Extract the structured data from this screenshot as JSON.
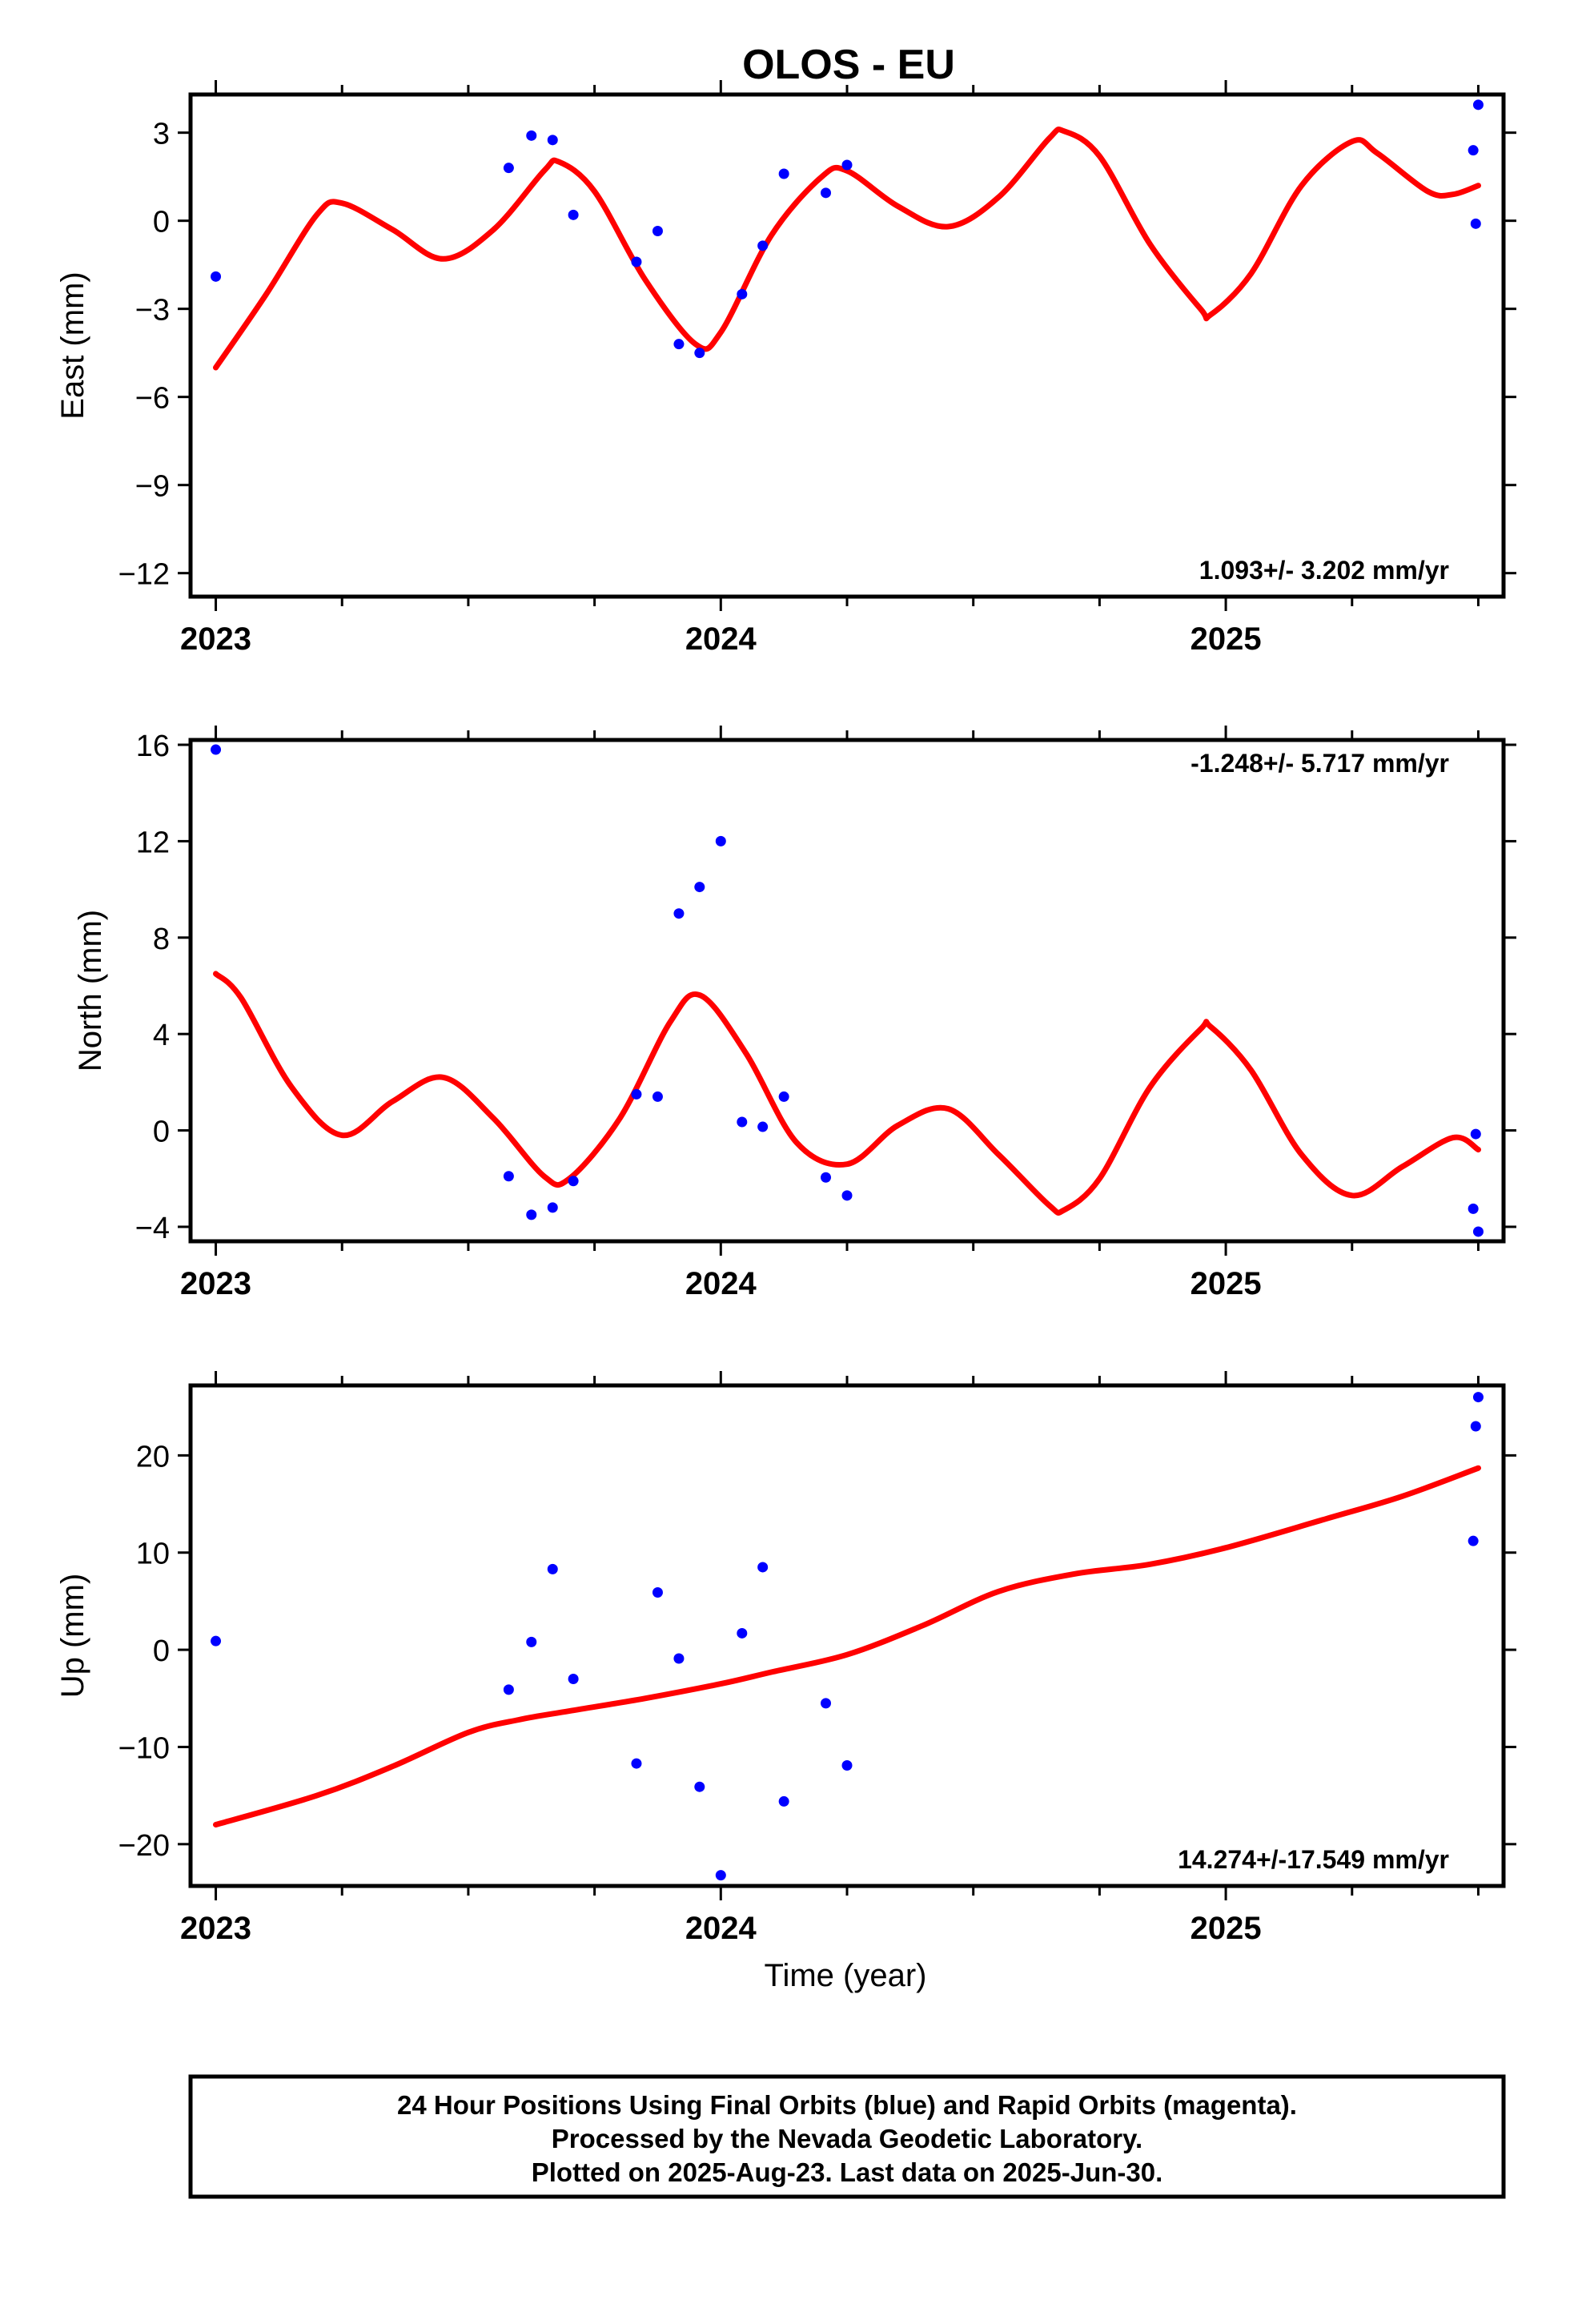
{
  "title": "OLOS - EU",
  "chart_data": [
    {
      "type": "scatter",
      "ylabel": "East (mm)",
      "xlabel": "",
      "xlim": [
        2022.95,
        2025.55
      ],
      "ylim": [
        -12.8,
        4.3
      ],
      "yticks": [
        3,
        0,
        -3,
        -6,
        -9,
        -12
      ],
      "yticklabels": [
        "3",
        "0",
        "−3",
        "−6",
        "−9",
        "−12"
      ],
      "xticks": [
        2023,
        2024,
        2025
      ],
      "xticklabels": [
        "2023",
        "2024",
        "2025"
      ],
      "rate_label": "1.093+/- 3.202 mm/yr",
      "rate_position": "bottom-right",
      "series": [
        {
          "name": "Final Orbits",
          "color": "#0000ff",
          "x": [
            2023.0,
            2023.58,
            2023.625,
            2023.667,
            2023.708,
            2023.833,
            2023.875,
            2023.917,
            2023.958,
            2024.042,
            2024.083,
            2024.125,
            2024.208,
            2024.25,
            2025.49,
            2025.495,
            2025.5
          ],
          "y": [
            -1.9,
            1.8,
            2.9,
            2.75,
            0.2,
            -1.4,
            -0.35,
            -4.2,
            -4.5,
            -2.5,
            -0.85,
            1.6,
            0.95,
            1.9,
            2.4,
            -0.1,
            3.95
          ]
        },
        {
          "name": "Model",
          "color": "#ff0000",
          "x": [
            2023.0,
            2023.1,
            2023.2,
            2023.25,
            2023.35,
            2023.45,
            2023.55,
            2023.65,
            2023.68,
            2023.75,
            2023.85,
            2023.95,
            2024.0,
            2024.1,
            2024.2,
            2024.25,
            2024.35,
            2024.45,
            2024.55,
            2024.65,
            2024.68,
            2024.75,
            2024.85,
            2024.95,
            2024.97,
            2025.05,
            2025.15,
            2025.25,
            2025.3,
            2025.4,
            2025.45,
            2025.5
          ],
          "y": [
            -5.0,
            -2.5,
            0.2,
            0.6,
            -0.3,
            -1.3,
            -0.3,
            1.7,
            2.0,
            1.0,
            -2.0,
            -4.2,
            -3.8,
            -0.5,
            1.5,
            1.7,
            0.5,
            -0.2,
            0.8,
            2.8,
            3.05,
            2.2,
            -0.8,
            -3.0,
            -3.2,
            -1.8,
            1.2,
            2.7,
            2.3,
            1.0,
            0.9,
            1.2
          ]
        }
      ]
    },
    {
      "type": "scatter",
      "ylabel": "North (mm)",
      "xlabel": "",
      "xlim": [
        2022.95,
        2025.55
      ],
      "ylim": [
        -4.6,
        16.2
      ],
      "yticks": [
        16,
        12,
        8,
        4,
        0,
        -4
      ],
      "yticklabels": [
        "16",
        "12",
        "8",
        "4",
        "0",
        "−4"
      ],
      "xticks": [
        2023,
        2024,
        2025
      ],
      "xticklabels": [
        "2023",
        "2024",
        "2025"
      ],
      "rate_label": "-1.248+/- 5.717 mm/yr",
      "rate_position": "top-right",
      "series": [
        {
          "name": "Final Orbits",
          "color": "#0000ff",
          "x": [
            2023.0,
            2023.58,
            2023.625,
            2023.667,
            2023.708,
            2023.833,
            2023.875,
            2023.917,
            2023.958,
            2024.0,
            2024.042,
            2024.083,
            2024.125,
            2024.208,
            2024.25,
            2025.49,
            2025.495,
            2025.5
          ],
          "y": [
            15.8,
            -1.9,
            -3.5,
            -3.2,
            -2.1,
            1.5,
            1.4,
            9.0,
            10.1,
            12.0,
            0.35,
            0.15,
            1.4,
            -1.95,
            -2.7,
            -3.25,
            -0.15,
            -4.2
          ]
        },
        {
          "name": "Model",
          "color": "#ff0000",
          "x": [
            2023.0,
            2023.05,
            2023.15,
            2023.25,
            2023.35,
            2023.45,
            2023.55,
            2023.65,
            2023.7,
            2023.8,
            2023.9,
            2023.96,
            2024.05,
            2024.15,
            2024.25,
            2024.35,
            2024.45,
            2024.55,
            2024.65,
            2024.68,
            2024.75,
            2024.85,
            2024.95,
            2024.97,
            2025.05,
            2025.15,
            2025.25,
            2025.35,
            2025.45,
            2025.5
          ],
          "y": [
            6.5,
            5.5,
            1.8,
            -0.2,
            1.2,
            2.2,
            0.5,
            -1.9,
            -2.0,
            0.5,
            4.5,
            5.6,
            3.2,
            -0.5,
            -1.4,
            0.2,
            0.9,
            -1.0,
            -3.1,
            -3.3,
            -2.0,
            1.8,
            4.2,
            4.3,
            2.5,
            -1.0,
            -2.7,
            -1.5,
            -0.3,
            -0.8
          ]
        }
      ]
    },
    {
      "type": "scatter",
      "ylabel": "Up (mm)",
      "xlabel": "Time (year)",
      "xlim": [
        2022.95,
        2025.55
      ],
      "ylim": [
        -24.3,
        27.2
      ],
      "yticks": [
        20,
        10,
        0,
        -10,
        -20
      ],
      "yticklabels": [
        "20",
        "10",
        "0",
        "−10",
        "−20"
      ],
      "xticks": [
        2023,
        2024,
        2025
      ],
      "xticklabels": [
        "2023",
        "2024",
        "2025"
      ],
      "rate_label": "14.274+/-17.549 mm/yr",
      "rate_position": "bottom-right",
      "series": [
        {
          "name": "Final Orbits",
          "color": "#0000ff",
          "x": [
            2023.0,
            2023.58,
            2023.625,
            2023.667,
            2023.708,
            2023.833,
            2023.875,
            2023.917,
            2023.958,
            2024.0,
            2024.042,
            2024.083,
            2024.125,
            2024.208,
            2024.25,
            2025.49,
            2025.495,
            2025.5
          ],
          "y": [
            0.9,
            -4.1,
            0.8,
            8.3,
            -3.0,
            -11.7,
            5.9,
            -0.9,
            -14.1,
            -23.2,
            1.7,
            8.5,
            -15.6,
            -5.5,
            -11.9,
            11.2,
            23.0,
            26.0
          ]
        },
        {
          "name": "Model",
          "color": "#ff0000",
          "x": [
            2023.0,
            2023.2,
            2023.35,
            2023.5,
            2023.6,
            2023.7,
            2023.85,
            2024.0,
            2024.1,
            2024.25,
            2024.4,
            2024.55,
            2024.7,
            2024.85,
            2025.0,
            2025.2,
            2025.35,
            2025.5
          ],
          "y": [
            -18.0,
            -15.0,
            -12.0,
            -8.5,
            -7.2,
            -6.3,
            -5.0,
            -3.5,
            -2.3,
            -0.5,
            2.5,
            6.0,
            7.8,
            8.8,
            10.5,
            13.5,
            15.8,
            18.7
          ]
        }
      ]
    }
  ],
  "footer": {
    "line1": "24 Hour Positions Using Final Orbits (blue) and Rapid Orbits (magenta).",
    "line2": "Processed by the Nevada Geodetic Laboratory.",
    "line3": "Plotted on 2025-Aug-23. Last data on 2025-Jun-30."
  }
}
